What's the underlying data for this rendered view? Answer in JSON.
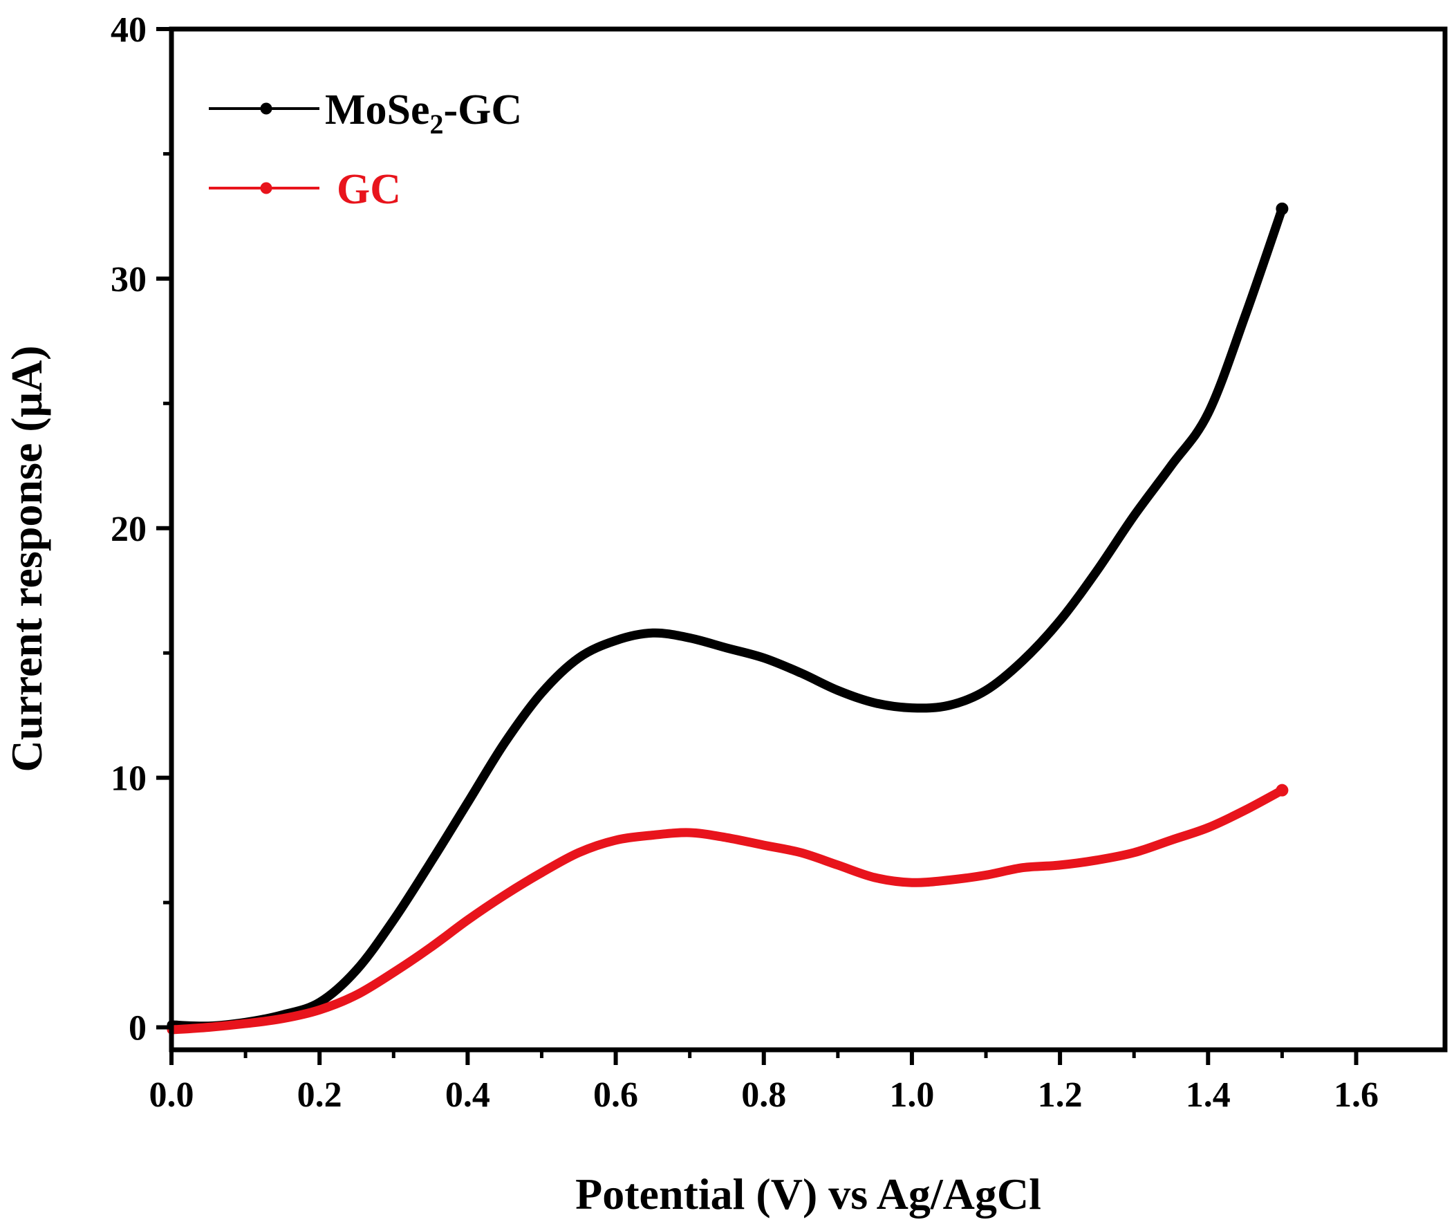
{
  "chart_data": {
    "type": "line",
    "xlabel": "Potential (V) vs Ag/AgCl",
    "ylabel": "Current response (μA)",
    "xlim": [
      0.0,
      1.72
    ],
    "ylim": [
      -0.9,
      40
    ],
    "xticks": [
      0.0,
      0.2,
      0.4,
      0.6,
      0.8,
      1.0,
      1.2,
      1.4,
      1.6
    ],
    "xtick_labels": [
      "0.0",
      "0.2",
      "0.4",
      "0.6",
      "0.8",
      "1.0",
      "1.2",
      "1.4",
      "1.6"
    ],
    "yticks": [
      0,
      10,
      20,
      30,
      40
    ],
    "ytick_labels": [
      "0",
      "10",
      "20",
      "30",
      "40"
    ],
    "legend_position": "top-left",
    "series": [
      {
        "name": "MoSe2-GC",
        "legend_main": "MoSe",
        "legend_sub": "2",
        "legend_suffix": "-GC",
        "color": "#000000",
        "x": [
          0.0,
          0.05,
          0.1,
          0.15,
          0.2,
          0.25,
          0.3,
          0.35,
          0.4,
          0.45,
          0.5,
          0.55,
          0.6,
          0.65,
          0.7,
          0.75,
          0.8,
          0.85,
          0.9,
          0.95,
          1.0,
          1.05,
          1.1,
          1.15,
          1.2,
          1.25,
          1.3,
          1.35,
          1.4,
          1.45,
          1.5
        ],
        "y": [
          0.1,
          0.05,
          0.2,
          0.5,
          1.0,
          2.3,
          4.3,
          6.6,
          9.0,
          11.4,
          13.4,
          14.8,
          15.5,
          15.8,
          15.6,
          15.2,
          14.8,
          14.2,
          13.5,
          13.0,
          12.8,
          12.9,
          13.5,
          14.7,
          16.3,
          18.3,
          20.5,
          22.5,
          24.6,
          28.5,
          32.8
        ]
      },
      {
        "name": "GC",
        "legend_main": "GC",
        "legend_sub": "",
        "legend_suffix": "",
        "color": "#e8141c",
        "x": [
          0.0,
          0.05,
          0.1,
          0.15,
          0.2,
          0.25,
          0.3,
          0.35,
          0.4,
          0.45,
          0.5,
          0.55,
          0.6,
          0.65,
          0.7,
          0.75,
          0.8,
          0.85,
          0.9,
          0.95,
          1.0,
          1.05,
          1.1,
          1.15,
          1.2,
          1.25,
          1.3,
          1.35,
          1.4,
          1.45,
          1.5
        ],
        "y": [
          -0.1,
          0.0,
          0.15,
          0.35,
          0.7,
          1.3,
          2.2,
          3.2,
          4.3,
          5.3,
          6.2,
          7.0,
          7.5,
          7.7,
          7.8,
          7.6,
          7.3,
          7.0,
          6.5,
          6.0,
          5.8,
          5.9,
          6.1,
          6.4,
          6.5,
          6.7,
          7.0,
          7.5,
          8.0,
          8.7,
          9.5
        ]
      }
    ]
  }
}
